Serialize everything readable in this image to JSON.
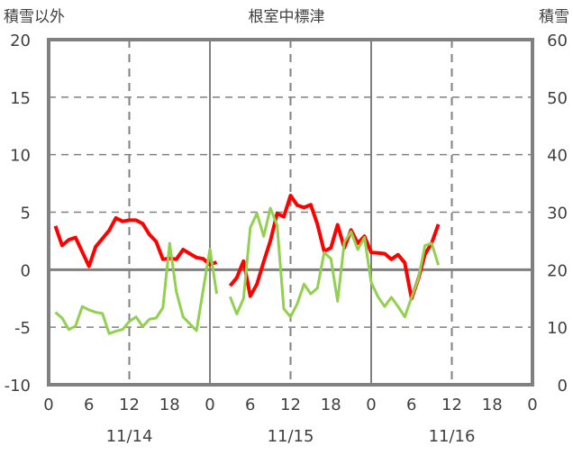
{
  "chart_data": {
    "type": "line",
    "title": "根室中標津",
    "left_axis_label": "積雪以外",
    "right_axis_label": "積雪",
    "ylim_left": [
      -10,
      20
    ],
    "ylim_right": [
      0,
      60
    ],
    "left_ticks": [
      "20",
      "15",
      "10",
      "5",
      "0",
      "-5",
      "-10"
    ],
    "right_ticks": [
      "60",
      "50",
      "40",
      "30",
      "20",
      "10",
      "0"
    ],
    "x_range_hours": [
      0,
      72
    ],
    "x_tick_labels": [
      "0",
      "6",
      "12",
      "18",
      "0",
      "6",
      "12",
      "18",
      "0",
      "6",
      "12",
      "18",
      "0"
    ],
    "date_labels": [
      "11/14",
      "11/15",
      "11/16"
    ],
    "grid": true,
    "colors": {
      "red": "#ff0000",
      "green": "#92d050",
      "purple": "#7030a0",
      "axis": "#808080"
    },
    "series": [
      {
        "name": "red",
        "axis": "left",
        "color": "#ff0000",
        "x": [
          1,
          2,
          3,
          4,
          6,
          7,
          9,
          10,
          11,
          12,
          13,
          14,
          15,
          16,
          17,
          18,
          19,
          20,
          21,
          22,
          23,
          24,
          25,
          null,
          27,
          28,
          29,
          30,
          31,
          32,
          33,
          34,
          35,
          36,
          37,
          38,
          39,
          40,
          41,
          42,
          43,
          44,
          45,
          46,
          47,
          48,
          49,
          50,
          51,
          52,
          53,
          54,
          55,
          56,
          57,
          58
        ],
        "values": [
          3.8,
          2.1,
          2.6,
          2.8,
          0.3,
          2.0,
          3.4,
          4.5,
          4.2,
          4.3,
          4.3,
          4.0,
          3.05,
          2.45,
          0.9,
          1.0,
          0.9,
          1.75,
          1.4,
          1.05,
          0.95,
          0.45,
          0.65,
          null,
          -1.4,
          -0.7,
          0.75,
          -2.3,
          -1.25,
          0.7,
          2.5,
          4.9,
          4.6,
          6.45,
          5.6,
          5.4,
          5.65,
          3.95,
          1.6,
          1.9,
          3.9,
          1.9,
          3.45,
          2.3,
          2.9,
          1.5,
          1.45,
          1.4,
          0.9,
          1.3,
          0.6,
          -2.5,
          -0.85,
          1.35,
          2.3,
          3.95
        ]
      },
      {
        "name": "green",
        "axis": "left",
        "color": "#92d050",
        "x": [
          1,
          2,
          3,
          4,
          5,
          6,
          7,
          8,
          9,
          10,
          11,
          12,
          13,
          14,
          15,
          16,
          17,
          18,
          19,
          20,
          22,
          24,
          25,
          null,
          27,
          28,
          29,
          30,
          31,
          32,
          33,
          34,
          35,
          36,
          37,
          38,
          39,
          40,
          41,
          42,
          43,
          44,
          45,
          46,
          47,
          48,
          49,
          50,
          51,
          52,
          53,
          54,
          55,
          56,
          57,
          58
        ],
        "values": [
          -3.7,
          -4.2,
          -5.2,
          -4.9,
          -3.2,
          -3.5,
          -3.7,
          -3.8,
          -5.55,
          -5.35,
          -5.2,
          -4.5,
          -4.1,
          -4.95,
          -4.3,
          -4.2,
          -3.3,
          2.3,
          -1.9,
          -4.1,
          -5.3,
          1.8,
          -2.1,
          null,
          -2.35,
          -3.85,
          -2.5,
          3.65,
          4.9,
          2.9,
          5.35,
          3.85,
          -3.4,
          -4.1,
          -2.95,
          -1.25,
          -2.1,
          -1.6,
          1.5,
          0.95,
          -2.75,
          2.4,
          3.3,
          1.75,
          2.8,
          -1.1,
          -2.35,
          -3.2,
          -2.4,
          -3.2,
          -4.1,
          -2.4,
          -0.85,
          2.1,
          2.3,
          0.4
        ]
      },
      {
        "name": "purple",
        "axis": "right",
        "color": "#7030a0",
        "x": [
          0.5,
          23.5,
          null,
          25,
          54
        ],
        "values": [
          0,
          0,
          null,
          0,
          0
        ]
      }
    ]
  }
}
